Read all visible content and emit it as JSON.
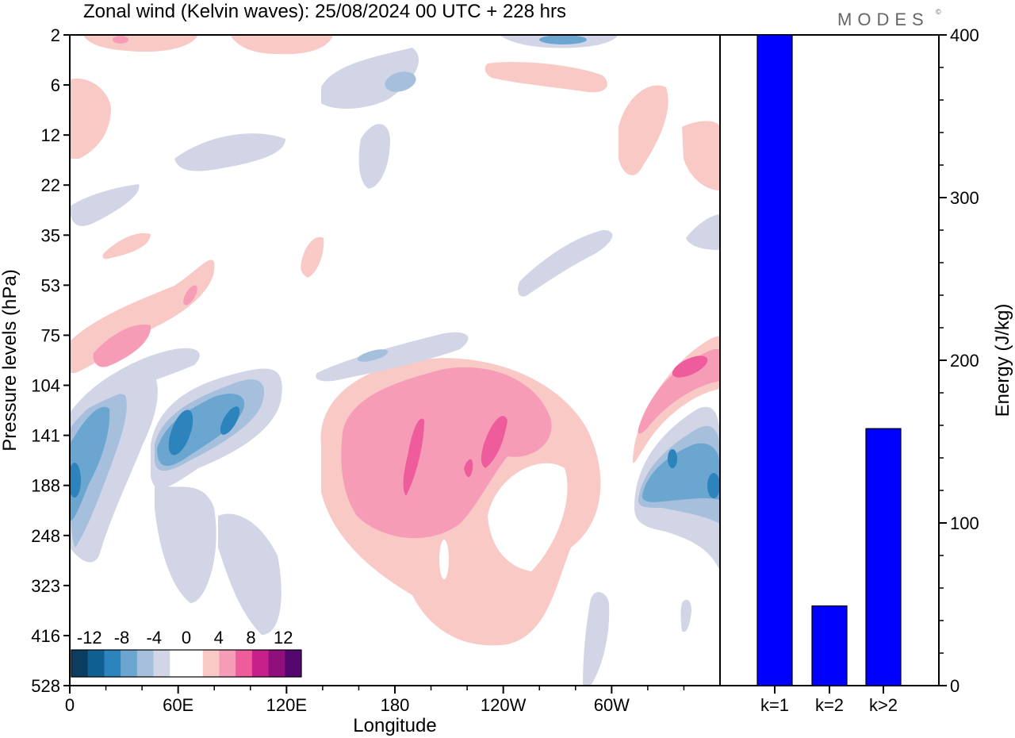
{
  "title": "Zonal wind (Kelvin waves):  25/08/2024  00 UTC  + 228 hrs",
  "logo": "MODES",
  "logo_mark": "©",
  "colors": {
    "neg": [
      "#0b3d60",
      "#105f93",
      "#2d84bd",
      "#6aa6cf",
      "#a6bfdc",
      "#d2d5e6"
    ],
    "zero": "#ffffff",
    "pos": [
      "#f9c9c6",
      "#f69cb6",
      "#ee5c9c",
      "#c8208a",
      "#8f0f7c",
      "#54086f"
    ],
    "bar_fill": "#0000ff"
  },
  "chart_data": [
    {
      "type": "heatmap",
      "title": "Zonal wind (Kelvin waves):  25/08/2024  00 UTC  + 228 hrs",
      "xlabel": "Longitude",
      "ylabel": "Pressure levels (hPa)",
      "x_ticks": [
        "0",
        "60E",
        "120E",
        "180",
        "120W",
        "60W"
      ],
      "y_ticks": [
        "2",
        "6",
        "12",
        "22",
        "35",
        "53",
        "75",
        "104",
        "141",
        "188",
        "248",
        "323",
        "416",
        "528"
      ],
      "colorbar_labels": [
        "-12",
        "-8",
        "-4",
        "0",
        "4",
        "8",
        "12"
      ],
      "unit_note": "",
      "features": [
        {
          "sign": 1,
          "level": 1,
          "lon": 200,
          "p_index": 9.8,
          "note": "large easterly-positive dome 150E-110W"
        },
        {
          "sign": 1,
          "level": 2,
          "lon": 192,
          "p_index": 9.3
        },
        {
          "sign": 1,
          "level": 3,
          "lon": 190,
          "p_index": 9.3
        },
        {
          "sign": -1,
          "level": 3,
          "lon": 30,
          "p_index": 8.8
        },
        {
          "sign": -1,
          "level": 4,
          "lon": 0,
          "p_index": 9.3
        },
        {
          "sign": -1,
          "level": 4,
          "lon": 330,
          "p_index": 9.5
        }
      ]
    },
    {
      "type": "bar",
      "categories": [
        "k=1",
        "k=2",
        "k>2"
      ],
      "values": [
        400,
        49,
        158
      ],
      "ylabel": "Energy (J/kg)",
      "ylim": [
        0,
        400
      ],
      "yticks": [
        0,
        100,
        200,
        300,
        400
      ]
    }
  ]
}
